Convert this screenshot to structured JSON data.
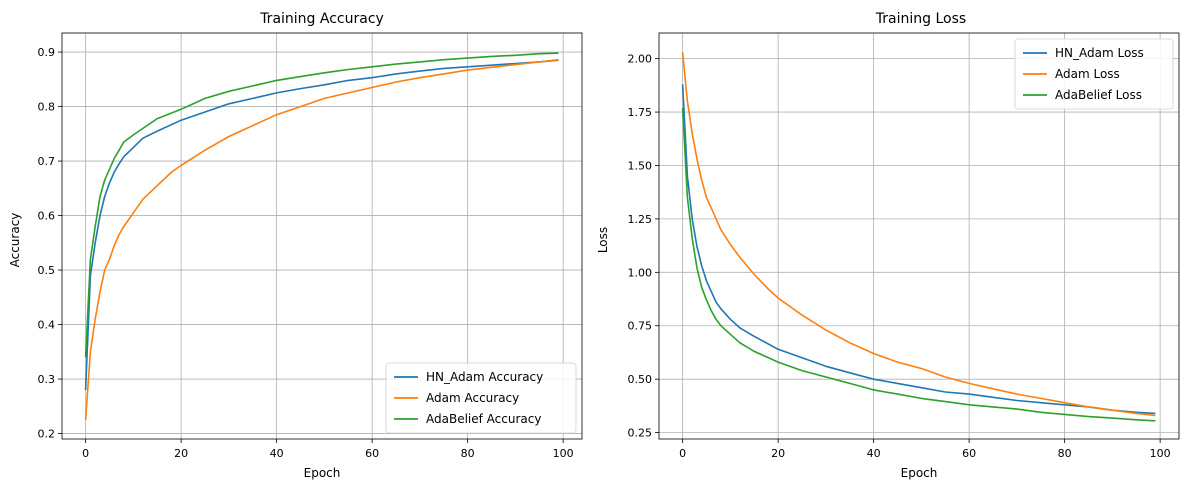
{
  "chart_data": [
    {
      "type": "line",
      "title": "Training Accuracy",
      "xlabel": "Epoch",
      "ylabel": "Accuracy",
      "xlim": [
        -4.95,
        103.95
      ],
      "ylim": [
        0.19,
        0.935
      ],
      "xticks": [
        0,
        20,
        40,
        60,
        80,
        100
      ],
      "xtick_labels": [
        "0",
        "20",
        "40",
        "60",
        "80",
        "100"
      ],
      "yticks": [
        0.2,
        0.3,
        0.4,
        0.5,
        0.6,
        0.7,
        0.8,
        0.9
      ],
      "ytick_labels": [
        "0.2",
        "0.3",
        "0.4",
        "0.5",
        "0.6",
        "0.7",
        "0.8",
        "0.9"
      ],
      "grid": true,
      "legend_position": "lower-right",
      "series": [
        {
          "name": "HN_Adam Accuracy",
          "color": "#1f77b4",
          "points": [
            [
              0,
              0.28
            ],
            [
              1,
              0.49
            ],
            [
              2,
              0.55
            ],
            [
              3,
              0.6
            ],
            [
              4,
              0.635
            ],
            [
              5,
              0.66
            ],
            [
              6,
              0.68
            ],
            [
              7,
              0.695
            ],
            [
              8,
              0.708
            ],
            [
              10,
              0.725
            ],
            [
              12,
              0.742
            ],
            [
              15,
              0.755
            ],
            [
              20,
              0.775
            ],
            [
              25,
              0.79
            ],
            [
              30,
              0.805
            ],
            [
              35,
              0.815
            ],
            [
              40,
              0.825
            ],
            [
              45,
              0.833
            ],
            [
              50,
              0.84
            ],
            [
              55,
              0.848
            ],
            [
              60,
              0.853
            ],
            [
              65,
              0.86
            ],
            [
              70,
              0.865
            ],
            [
              75,
              0.87
            ],
            [
              80,
              0.873
            ],
            [
              85,
              0.876
            ],
            [
              90,
              0.879
            ],
            [
              95,
              0.882
            ],
            [
              99,
              0.885
            ]
          ]
        },
        {
          "name": "Adam Accuracy",
          "color": "#ff7f0e",
          "points": [
            [
              0,
              0.225
            ],
            [
              1,
              0.35
            ],
            [
              2,
              0.41
            ],
            [
              3,
              0.46
            ],
            [
              4,
              0.5
            ],
            [
              5,
              0.52
            ],
            [
              6,
              0.545
            ],
            [
              7,
              0.565
            ],
            [
              8,
              0.58
            ],
            [
              10,
              0.605
            ],
            [
              12,
              0.63
            ],
            [
              15,
              0.655
            ],
            [
              18,
              0.68
            ],
            [
              20,
              0.692
            ],
            [
              25,
              0.72
            ],
            [
              30,
              0.745
            ],
            [
              35,
              0.765
            ],
            [
              40,
              0.785
            ],
            [
              45,
              0.8
            ],
            [
              50,
              0.815
            ],
            [
              55,
              0.825
            ],
            [
              60,
              0.835
            ],
            [
              65,
              0.845
            ],
            [
              70,
              0.853
            ],
            [
              75,
              0.86
            ],
            [
              80,
              0.867
            ],
            [
              85,
              0.872
            ],
            [
              90,
              0.877
            ],
            [
              95,
              0.882
            ],
            [
              99,
              0.886
            ]
          ]
        },
        {
          "name": "AdaBelief Accuracy",
          "color": "#2ca02c",
          "points": [
            [
              0,
              0.34
            ],
            [
              1,
              0.52
            ],
            [
              2,
              0.58
            ],
            [
              3,
              0.635
            ],
            [
              4,
              0.665
            ],
            [
              5,
              0.685
            ],
            [
              6,
              0.705
            ],
            [
              7,
              0.72
            ],
            [
              8,
              0.735
            ],
            [
              10,
              0.748
            ],
            [
              12,
              0.76
            ],
            [
              15,
              0.778
            ],
            [
              20,
              0.795
            ],
            [
              25,
              0.815
            ],
            [
              30,
              0.828
            ],
            [
              35,
              0.838
            ],
            [
              40,
              0.848
            ],
            [
              45,
              0.855
            ],
            [
              50,
              0.862
            ],
            [
              55,
              0.868
            ],
            [
              60,
              0.873
            ],
            [
              65,
              0.878
            ],
            [
              70,
              0.882
            ],
            [
              75,
              0.886
            ],
            [
              80,
              0.889
            ],
            [
              85,
              0.892
            ],
            [
              90,
              0.894
            ],
            [
              95,
              0.897
            ],
            [
              99,
              0.898
            ]
          ]
        }
      ]
    },
    {
      "type": "line",
      "title": "Training Loss",
      "xlabel": "Epoch",
      "ylabel": "Loss",
      "xlim": [
        -4.95,
        103.95
      ],
      "ylim": [
        0.22,
        2.12
      ],
      "xticks": [
        0,
        20,
        40,
        60,
        80,
        100
      ],
      "xtick_labels": [
        "0",
        "20",
        "40",
        "60",
        "80",
        "100"
      ],
      "yticks": [
        0.25,
        0.5,
        0.75,
        1.0,
        1.25,
        1.5,
        1.75,
        2.0
      ],
      "ytick_labels": [
        "0.25",
        "0.50",
        "0.75",
        "1.00",
        "1.25",
        "1.50",
        "1.75",
        "2.00"
      ],
      "grid": true,
      "legend_position": "upper-right",
      "series": [
        {
          "name": "HN_Adam Loss",
          "color": "#1f77b4",
          "points": [
            [
              0,
              1.88
            ],
            [
              1,
              1.45
            ],
            [
              2,
              1.25
            ],
            [
              3,
              1.12
            ],
            [
              4,
              1.03
            ],
            [
              5,
              0.96
            ],
            [
              6,
              0.91
            ],
            [
              7,
              0.86
            ],
            [
              8,
              0.83
            ],
            [
              10,
              0.78
            ],
            [
              12,
              0.74
            ],
            [
              15,
              0.7
            ],
            [
              20,
              0.64
            ],
            [
              25,
              0.6
            ],
            [
              30,
              0.56
            ],
            [
              35,
              0.53
            ],
            [
              40,
              0.5
            ],
            [
              45,
              0.48
            ],
            [
              50,
              0.46
            ],
            [
              55,
              0.44
            ],
            [
              60,
              0.43
            ],
            [
              65,
              0.415
            ],
            [
              70,
              0.4
            ],
            [
              75,
              0.39
            ],
            [
              80,
              0.38
            ],
            [
              85,
              0.37
            ],
            [
              90,
              0.355
            ],
            [
              95,
              0.345
            ],
            [
              99,
              0.34
            ]
          ]
        },
        {
          "name": "Adam Loss",
          "color": "#ff7f0e",
          "points": [
            [
              0,
              2.03
            ],
            [
              1,
              1.8
            ],
            [
              2,
              1.65
            ],
            [
              3,
              1.53
            ],
            [
              4,
              1.43
            ],
            [
              5,
              1.35
            ],
            [
              6,
              1.3
            ],
            [
              7,
              1.25
            ],
            [
              8,
              1.2
            ],
            [
              10,
              1.13
            ],
            [
              12,
              1.07
            ],
            [
              15,
              0.99
            ],
            [
              18,
              0.92
            ],
            [
              20,
              0.88
            ],
            [
              25,
              0.8
            ],
            [
              30,
              0.73
            ],
            [
              35,
              0.67
            ],
            [
              40,
              0.62
            ],
            [
              45,
              0.58
            ],
            [
              50,
              0.55
            ],
            [
              55,
              0.51
            ],
            [
              60,
              0.48
            ],
            [
              65,
              0.455
            ],
            [
              70,
              0.43
            ],
            [
              75,
              0.41
            ],
            [
              80,
              0.39
            ],
            [
              85,
              0.37
            ],
            [
              90,
              0.355
            ],
            [
              95,
              0.34
            ],
            [
              99,
              0.33
            ]
          ]
        },
        {
          "name": "AdaBelief Loss",
          "color": "#2ca02c",
          "points": [
            [
              0,
              1.77
            ],
            [
              1,
              1.35
            ],
            [
              2,
              1.16
            ],
            [
              3,
              1.02
            ],
            [
              4,
              0.93
            ],
            [
              5,
              0.87
            ],
            [
              6,
              0.82
            ],
            [
              7,
              0.78
            ],
            [
              8,
              0.75
            ],
            [
              10,
              0.71
            ],
            [
              12,
              0.67
            ],
            [
              15,
              0.63
            ],
            [
              20,
              0.58
            ],
            [
              25,
              0.54
            ],
            [
              30,
              0.51
            ],
            [
              35,
              0.48
            ],
            [
              40,
              0.45
            ],
            [
              45,
              0.43
            ],
            [
              50,
              0.41
            ],
            [
              55,
              0.395
            ],
            [
              60,
              0.38
            ],
            [
              65,
              0.37
            ],
            [
              70,
              0.36
            ],
            [
              75,
              0.345
            ],
            [
              80,
              0.335
            ],
            [
              85,
              0.325
            ],
            [
              90,
              0.318
            ],
            [
              95,
              0.31
            ],
            [
              99,
              0.305
            ]
          ]
        }
      ]
    }
  ]
}
